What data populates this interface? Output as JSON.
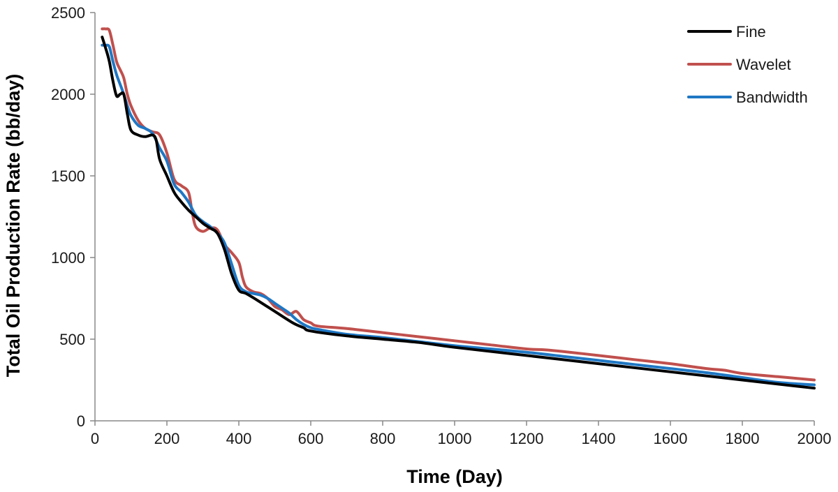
{
  "chart_data": {
    "type": "line",
    "title": "",
    "xlabel": "Time (Day)",
    "ylabel": "Total Oil Production Rate (bb/day)",
    "xlim": [
      0,
      2000
    ],
    "ylim": [
      0,
      2500
    ],
    "xticks": [
      0,
      200,
      400,
      600,
      800,
      1000,
      1200,
      1400,
      1600,
      1800,
      2000
    ],
    "yticks": [
      0,
      500,
      1000,
      1500,
      2000,
      2500
    ],
    "grid": false,
    "legend_position": "top-right",
    "series": [
      {
        "name": "Fine",
        "color": "#000000",
        "x": [
          20,
          30,
          40,
          50,
          60,
          70,
          80,
          90,
          100,
          120,
          140,
          160,
          170,
          180,
          200,
          220,
          240,
          260,
          280,
          300,
          320,
          340,
          360,
          380,
          400,
          420,
          450,
          500,
          550,
          580,
          600,
          700,
          800,
          900,
          1000,
          1200,
          1400,
          1600,
          1800,
          2000
        ],
        "y": [
          2350,
          2280,
          2200,
          2080,
          1990,
          2000,
          2000,
          1880,
          1780,
          1750,
          1740,
          1750,
          1720,
          1600,
          1500,
          1400,
          1340,
          1290,
          1250,
          1210,
          1180,
          1150,
          1050,
          900,
          800,
          780,
          740,
          670,
          600,
          570,
          550,
          520,
          500,
          480,
          450,
          400,
          350,
          300,
          250,
          200
        ]
      },
      {
        "name": "Wavelet",
        "color": "#c0504d",
        "x": [
          20,
          30,
          40,
          50,
          60,
          70,
          80,
          90,
          100,
          120,
          140,
          160,
          180,
          200,
          220,
          240,
          260,
          270,
          280,
          300,
          320,
          340,
          360,
          380,
          400,
          410,
          420,
          440,
          460,
          480,
          500,
          520,
          540,
          560,
          580,
          600,
          620,
          700,
          800,
          900,
          1000,
          1100,
          1200,
          1250,
          1300,
          1400,
          1500,
          1600,
          1700,
          1750,
          1800,
          1900,
          2000
        ],
        "y": [
          2400,
          2400,
          2390,
          2300,
          2200,
          2150,
          2100,
          2000,
          1930,
          1840,
          1790,
          1770,
          1750,
          1640,
          1480,
          1440,
          1400,
          1280,
          1190,
          1160,
          1180,
          1170,
          1080,
          1030,
          970,
          880,
          820,
          790,
          780,
          750,
          700,
          680,
          650,
          670,
          620,
          600,
          580,
          565,
          540,
          515,
          490,
          465,
          440,
          435,
          425,
          400,
          375,
          350,
          320,
          310,
          290,
          270,
          250
        ]
      },
      {
        "name": "Bandwidth",
        "color": "#1f77c4",
        "x": [
          20,
          30,
          40,
          50,
          60,
          70,
          80,
          90,
          100,
          120,
          140,
          160,
          180,
          200,
          220,
          240,
          260,
          280,
          300,
          320,
          340,
          360,
          380,
          400,
          420,
          440,
          460,
          480,
          500,
          520,
          540,
          560,
          580,
          600,
          620,
          700,
          800,
          900,
          1000,
          1100,
          1200,
          1300,
          1400,
          1500,
          1600,
          1700,
          1800,
          1900,
          2000
        ],
        "y": [
          2300,
          2300,
          2290,
          2200,
          2120,
          2060,
          2000,
          1930,
          1870,
          1810,
          1790,
          1760,
          1670,
          1590,
          1450,
          1400,
          1340,
          1260,
          1220,
          1190,
          1150,
          1090,
          960,
          830,
          790,
          780,
          770,
          750,
          720,
          690,
          660,
          620,
          590,
          570,
          560,
          530,
          510,
          485,
          460,
          440,
          420,
          395,
          370,
          345,
          320,
          295,
          265,
          235,
          220
        ]
      }
    ]
  }
}
